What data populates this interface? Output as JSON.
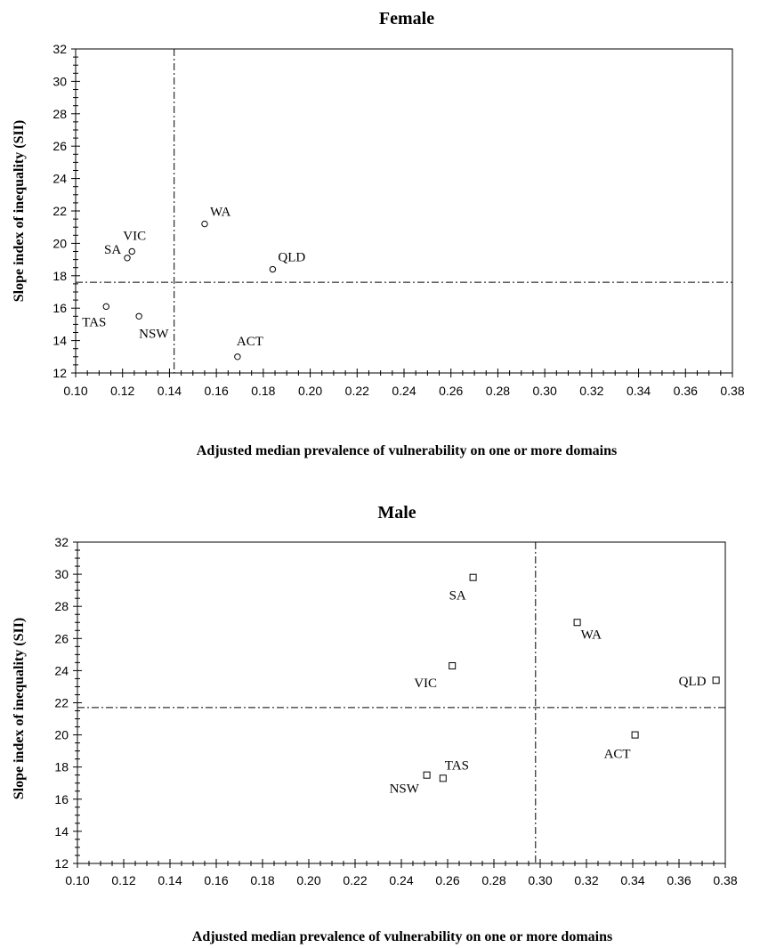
{
  "chart_data": [
    {
      "type": "scatter",
      "title": "Female",
      "xlabel": "Adjusted median prevalence of vulnerability on one or more domains",
      "ylabel": "Slope index of inequality (SII)",
      "xlim": [
        0.1,
        0.38
      ],
      "ylim": [
        12,
        32
      ],
      "x_ticks": [
        "0.10",
        "0.12",
        "0.14",
        "0.16",
        "0.18",
        "0.20",
        "0.22",
        "0.24",
        "0.26",
        "0.28",
        "0.30",
        "0.32",
        "0.34",
        "0.36",
        "0.38"
      ],
      "y_ticks": [
        "12",
        "14",
        "16",
        "18",
        "20",
        "22",
        "24",
        "26",
        "28",
        "30",
        "32"
      ],
      "marker": "circle",
      "reference_lines": {
        "x": 0.142,
        "y": 17.6
      },
      "points": [
        {
          "label": "WA",
          "x": 0.155,
          "y": 21.2
        },
        {
          "label": "VIC",
          "x": 0.124,
          "y": 19.5
        },
        {
          "label": "SA",
          "x": 0.122,
          "y": 19.1
        },
        {
          "label": "QLD",
          "x": 0.184,
          "y": 18.4
        },
        {
          "label": "TAS",
          "x": 0.113,
          "y": 16.1
        },
        {
          "label": "NSW",
          "x": 0.127,
          "y": 15.5
        },
        {
          "label": "ACT",
          "x": 0.169,
          "y": 13.0
        }
      ]
    },
    {
      "type": "scatter",
      "title": "Male",
      "xlabel": "Adjusted median prevalence of vulnerability on one or more domains",
      "ylabel": "Slope index of inequality (SII)",
      "xlim": [
        0.1,
        0.38
      ],
      "ylim": [
        12,
        32
      ],
      "x_ticks": [
        "0.10",
        "0.12",
        "0.14",
        "0.16",
        "0.18",
        "0.20",
        "0.22",
        "0.24",
        "0.26",
        "0.28",
        "0.30",
        "0.32",
        "0.34",
        "0.36",
        "0.38"
      ],
      "y_ticks": [
        "12",
        "14",
        "16",
        "18",
        "20",
        "22",
        "24",
        "26",
        "28",
        "30",
        "32"
      ],
      "marker": "square",
      "reference_lines": {
        "x": 0.298,
        "y": 21.7
      },
      "points": [
        {
          "label": "SA",
          "x": 0.271,
          "y": 29.8
        },
        {
          "label": "WA",
          "x": 0.316,
          "y": 27.0
        },
        {
          "label": "VIC",
          "x": 0.262,
          "y": 24.3
        },
        {
          "label": "QLD",
          "x": 0.376,
          "y": 23.4
        },
        {
          "label": "ACT",
          "x": 0.341,
          "y": 20.0
        },
        {
          "label": "TAS",
          "x": 0.258,
          "y": 17.3
        },
        {
          "label": "NSW",
          "x": 0.251,
          "y": 17.5
        }
      ]
    }
  ]
}
